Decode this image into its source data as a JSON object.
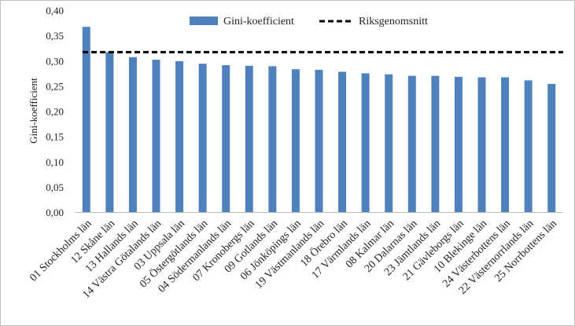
{
  "chart_data": {
    "type": "bar",
    "ylabel": "Gini-koefficient",
    "ylim": [
      0,
      0.4
    ],
    "yticks": [
      "0,00",
      "0,05",
      "0,10",
      "0,15",
      "0,20",
      "0,25",
      "0,30",
      "0,35",
      "0,40"
    ],
    "categories": [
      "01 Stockholms län",
      "12 Skåne län",
      "13 Hallands län",
      "14 Västra Götalands län",
      "03 Uppsala län",
      "05 Östergötlands län",
      "04 Södermanlands län",
      "07 Kronobergs län",
      "09 Gotlands län",
      "06 Jönköpings län",
      "19 Västmanlands län",
      "18 Örebro län",
      "17 Värmlands län",
      "08 Kalmar län",
      "20 Dalarnas län",
      "23 Jämtlands län",
      "21 Gävleborgs län",
      "10 Blekinge län",
      "24 Västerbottens län",
      "22 Västernorrlands län",
      "25 Norrbottens län"
    ],
    "series": [
      {
        "name": "Gini-koefficient",
        "color": "#4f81bd",
        "values": [
          0.367,
          0.317,
          0.307,
          0.302,
          0.299,
          0.294,
          0.291,
          0.29,
          0.289,
          0.283,
          0.282,
          0.278,
          0.275,
          0.273,
          0.27,
          0.27,
          0.268,
          0.267,
          0.267,
          0.261,
          0.254
        ]
      }
    ],
    "reference_line": {
      "name": "Riksgenomsnitt",
      "value": 0.317,
      "style": "dashed",
      "color": "#000000"
    },
    "legend": "top-center",
    "grid": false
  }
}
